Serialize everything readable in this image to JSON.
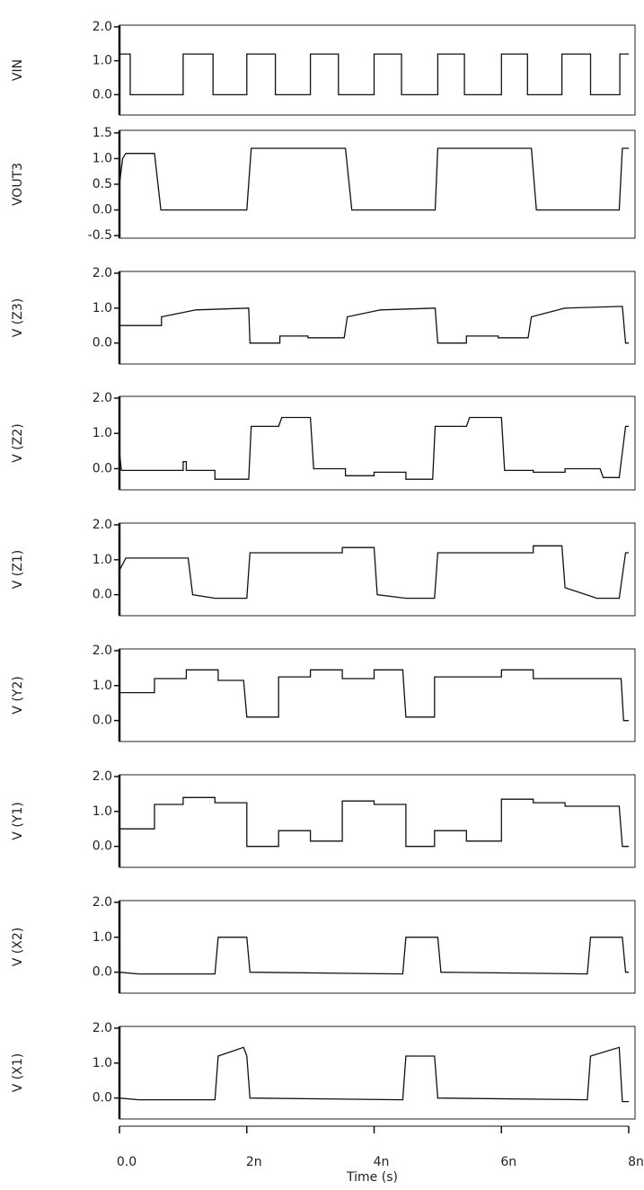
{
  "chart_data": [
    {
      "type": "line",
      "ylabel": "VIN",
      "color": "#111111",
      "xlim": [
        0,
        8e-09
      ],
      "ylim": [
        -0.6,
        2.05
      ],
      "yticks": [
        {
          "value": 2,
          "label": "2.0"
        },
        {
          "value": 1,
          "label": "1.0"
        },
        {
          "value": 0,
          "label": "0.0"
        }
      ],
      "x": [
        0,
        1.7e-10,
        1.7e-10,
        1e-09,
        1e-09,
        1.47e-09,
        1.47e-09,
        2e-09,
        2e-09,
        2.45e-09,
        2.45e-09,
        3e-09,
        3e-09,
        3.44e-09,
        3.44e-09,
        4e-09,
        4e-09,
        4.43e-09,
        4.43e-09,
        5e-09,
        5e-09,
        5.42e-09,
        5.42e-09,
        6e-09,
        6e-09,
        6.41e-09,
        6.41e-09,
        6.95e-09,
        6.95e-09,
        7.4e-09,
        7.4e-09,
        7.86e-09,
        7.86e-09,
        8e-09
      ],
      "values": [
        1.2,
        1.2,
        0,
        0,
        1.2,
        1.2,
        0,
        0,
        1.2,
        1.2,
        0,
        0,
        1.2,
        1.2,
        0,
        0,
        1.2,
        1.2,
        0,
        0,
        1.2,
        1.2,
        0,
        0,
        1.2,
        1.2,
        0,
        0,
        1.2,
        1.2,
        0,
        0,
        1.2,
        1.2
      ]
    },
    {
      "type": "line",
      "ylabel": "VOUT3",
      "color": "#111111",
      "xlim": [
        0,
        8e-09
      ],
      "ylim": [
        -0.55,
        1.55
      ],
      "yticks": [
        1.5,
        {
          "value": 1,
          "label": "1.0"
        },
        0.5,
        {
          "value": 0,
          "label": "0.0"
        },
        -0.5
      ],
      "x": [
        0,
        5e-11,
        1e-10,
        5.5e-10,
        6.5e-10,
        2e-09,
        2.07e-09,
        3.55e-09,
        3.65e-09,
        4.96e-09,
        5e-09,
        6.47e-09,
        6.55e-09,
        7.85e-09,
        7.9e-09,
        8e-09
      ],
      "values": [
        0.5,
        1.0,
        1.1,
        1.1,
        0,
        0,
        1.2,
        1.2,
        0,
        0,
        1.2,
        1.2,
        0,
        0,
        1.2,
        1.2
      ]
    },
    {
      "type": "line",
      "ylabel": "V (Z3)",
      "color": "#111111",
      "xlim": [
        0,
        8e-09
      ],
      "ylim": [
        -0.6,
        2.05
      ],
      "yticks": [
        {
          "value": 2,
          "label": "2.0"
        },
        {
          "value": 1,
          "label": "1.0"
        },
        {
          "value": 0,
          "label": "0.0"
        }
      ],
      "x": [
        0,
        6.6e-10,
        6.6e-10,
        1.2e-09,
        2.03e-09,
        2.05e-09,
        2.52e-09,
        2.52e-09,
        2.96e-09,
        2.96e-09,
        3.53e-09,
        3.58e-09,
        4.1e-09,
        4.96e-09,
        5e-09,
        5.45e-09,
        5.45e-09,
        5.95e-09,
        5.95e-09,
        6.42e-09,
        6.47e-09,
        7e-09,
        7.9e-09,
        7.95e-09,
        8e-09
      ],
      "values": [
        0.5,
        0.5,
        0.75,
        0.95,
        1.0,
        0,
        0,
        0.2,
        0.2,
        0.15,
        0.15,
        0.75,
        0.95,
        1.0,
        0,
        0,
        0.2,
        0.2,
        0.15,
        0.15,
        0.75,
        1.0,
        1.05,
        0,
        0
      ]
    },
    {
      "type": "line",
      "ylabel": "V (Z2)",
      "color": "#111111",
      "xlim": [
        0,
        8e-09
      ],
      "ylim": [
        -0.6,
        2.05
      ],
      "yticks": [
        {
          "value": 2,
          "label": "2.0"
        },
        {
          "value": 1,
          "label": "1.0"
        },
        {
          "value": 0,
          "label": "0.0"
        }
      ],
      "x": [
        0,
        3e-11,
        1e-09,
        1e-09,
        1.05e-09,
        1.05e-09,
        1.5e-09,
        1.5e-09,
        2.03e-09,
        2.07e-09,
        2.5e-09,
        2.55e-09,
        3e-09,
        3.05e-09,
        3.55e-09,
        3.55e-09,
        4e-09,
        4e-09,
        4.5e-09,
        4.5e-09,
        4.92e-09,
        4.96e-09,
        5.45e-09,
        5.5e-09,
        6e-09,
        6.05e-09,
        6.5e-09,
        6.5e-09,
        7e-09,
        7e-09,
        7.55e-09,
        7.6e-09,
        7.85e-09,
        7.95e-09,
        8e-09
      ],
      "values": [
        0.5,
        -0.05,
        -0.05,
        0.2,
        0.2,
        -0.05,
        -0.05,
        -0.3,
        -0.3,
        1.2,
        1.2,
        1.45,
        1.45,
        0,
        0,
        -0.2,
        -0.2,
        -0.1,
        -0.1,
        -0.3,
        -0.3,
        1.2,
        1.2,
        1.45,
        1.45,
        -0.05,
        -0.05,
        -0.1,
        -0.1,
        0,
        0,
        -0.25,
        -0.25,
        1.2,
        1.2
      ]
    },
    {
      "type": "line",
      "ylabel": "V (Z1)",
      "color": "#111111",
      "xlim": [
        0,
        8e-09
      ],
      "ylim": [
        -0.6,
        2.05
      ],
      "yticks": [
        {
          "value": 2,
          "label": "2.0"
        },
        {
          "value": 1,
          "label": "1.0"
        },
        {
          "value": 0,
          "label": "0.0"
        }
      ],
      "x": [
        0,
        1e-10,
        1.08e-09,
        1.15e-09,
        1.5e-09,
        2e-09,
        2.05e-09,
        3.5e-09,
        3.5e-09,
        4e-09,
        4.05e-09,
        4.5e-09,
        4.95e-09,
        5e-09,
        6.5e-09,
        6.5e-09,
        6.95e-09,
        7e-09,
        7.5e-09,
        7.85e-09,
        7.95e-09,
        8e-09
      ],
      "values": [
        0.7,
        1.05,
        1.05,
        0,
        -0.1,
        -0.1,
        1.2,
        1.2,
        1.35,
        1.35,
        0,
        -0.1,
        -0.1,
        1.2,
        1.2,
        1.4,
        1.4,
        0.2,
        -0.1,
        -0.1,
        1.2,
        1.2
      ]
    },
    {
      "type": "line",
      "ylabel": "V (Y2)",
      "color": "#111111",
      "xlim": [
        0,
        8e-09
      ],
      "ylim": [
        -0.6,
        2.05
      ],
      "yticks": [
        {
          "value": 2,
          "label": "2.0"
        },
        {
          "value": 1,
          "label": "1.0"
        },
        {
          "value": 0,
          "label": "0.0"
        }
      ],
      "x": [
        0,
        5.5e-10,
        5.5e-10,
        1.05e-09,
        1.05e-09,
        1.55e-09,
        1.55e-09,
        1.95e-09,
        2e-09,
        2.5e-09,
        2.5e-09,
        3e-09,
        3e-09,
        3.5e-09,
        3.5e-09,
        4e-09,
        4e-09,
        4.45e-09,
        4.5e-09,
        4.95e-09,
        4.95e-09,
        6e-09,
        6e-09,
        6.5e-09,
        6.5e-09,
        7.88e-09,
        7.92e-09,
        8e-09
      ],
      "values": [
        0.8,
        0.8,
        1.2,
        1.2,
        1.45,
        1.45,
        1.15,
        1.15,
        0.1,
        0.1,
        1.25,
        1.25,
        1.45,
        1.45,
        1.2,
        1.2,
        1.45,
        1.45,
        0.1,
        0.1,
        1.25,
        1.25,
        1.45,
        1.45,
        1.2,
        1.2,
        0,
        0
      ]
    },
    {
      "type": "line",
      "ylabel": "V (Y1)",
      "color": "#111111",
      "xlim": [
        0,
        8e-09
      ],
      "ylim": [
        -0.6,
        2.05
      ],
      "yticks": [
        {
          "value": 2,
          "label": "2.0"
        },
        {
          "value": 1,
          "label": "1.0"
        },
        {
          "value": 0,
          "label": "0.0"
        }
      ],
      "x": [
        0,
        5.5e-10,
        5.5e-10,
        1e-09,
        1e-09,
        1.5e-09,
        1.5e-09,
        2e-09,
        2e-09,
        2.5e-09,
        2.5e-09,
        3e-09,
        3e-09,
        3.5e-09,
        3.5e-09,
        4e-09,
        4e-09,
        4.5e-09,
        4.5e-09,
        4.95e-09,
        4.95e-09,
        5.45e-09,
        5.45e-09,
        6e-09,
        6e-09,
        6.5e-09,
        6.5e-09,
        7e-09,
        7e-09,
        7.85e-09,
        7.9e-09,
        8e-09
      ],
      "values": [
        0.5,
        0.5,
        1.2,
        1.2,
        1.4,
        1.4,
        1.25,
        1.25,
        0,
        0,
        0.45,
        0.45,
        0.15,
        0.15,
        1.3,
        1.3,
        1.2,
        1.2,
        0,
        0,
        0.45,
        0.45,
        0.15,
        0.15,
        1.35,
        1.35,
        1.25,
        1.25,
        1.15,
        1.15,
        0,
        0
      ]
    },
    {
      "type": "line",
      "ylabel": "V (X2)",
      "color": "#111111",
      "xlim": [
        0,
        8e-09
      ],
      "ylim": [
        -0.6,
        2.05
      ],
      "yticks": [
        {
          "value": 2,
          "label": "2.0"
        },
        {
          "value": 1,
          "label": "1.0"
        },
        {
          "value": 0,
          "label": "0.0"
        }
      ],
      "x": [
        0,
        3e-10,
        1.5e-09,
        1.55e-09,
        2e-09,
        2.05e-09,
        4.45e-09,
        4.5e-09,
        5e-09,
        5.05e-09,
        7.35e-09,
        7.4e-09,
        7.9e-09,
        7.95e-09,
        8e-09
      ],
      "values": [
        0,
        -0.05,
        -0.05,
        1.0,
        1.0,
        0,
        -0.05,
        1.0,
        1.0,
        0,
        -0.05,
        1.0,
        1.0,
        0,
        0
      ]
    },
    {
      "type": "line",
      "ylabel": "V (X1)",
      "color": "#111111",
      "xlim": [
        0,
        8e-09
      ],
      "ylim": [
        -0.6,
        2.05
      ],
      "yticks": [
        {
          "value": 2,
          "label": "2.0"
        },
        {
          "value": 1,
          "label": "1.0"
        },
        {
          "value": 0,
          "label": "0.0"
        }
      ],
      "xlabel": "Time (s)",
      "xticks": [
        {
          "value": 0,
          "label": "0.0"
        },
        {
          "value": 2e-09,
          "label": "2n"
        },
        {
          "value": 4e-09,
          "label": "4n"
        },
        {
          "value": 6e-09,
          "label": "6n"
        },
        {
          "value": 8e-09,
          "label": "8n"
        }
      ],
      "x": [
        0,
        3e-10,
        1.5e-09,
        1.55e-09,
        1.95e-09,
        2e-09,
        2.05e-09,
        4.45e-09,
        4.5e-09,
        4.95e-09,
        5e-09,
        7.35e-09,
        7.4e-09,
        7.85e-09,
        7.9e-09,
        8e-09
      ],
      "values": [
        0,
        -0.05,
        -0.05,
        1.2,
        1.45,
        1.2,
        0,
        -0.05,
        1.2,
        1.2,
        0,
        -0.05,
        1.2,
        1.45,
        -0.1,
        -0.1
      ]
    }
  ]
}
